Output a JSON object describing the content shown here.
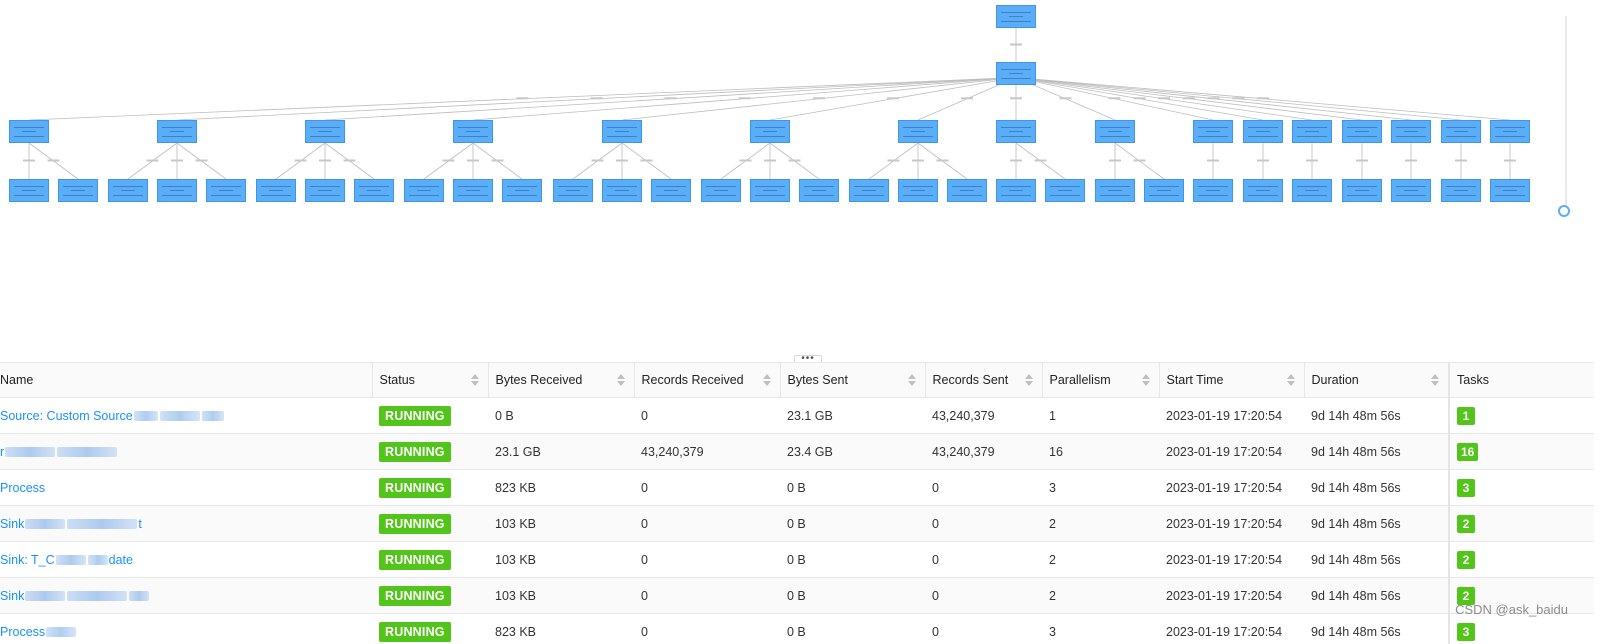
{
  "table": {
    "columns": [
      "Name",
      "Status",
      "Bytes Received",
      "Records Received",
      "Bytes Sent",
      "Records Sent",
      "Parallelism",
      "Start Time",
      "Duration",
      "Tasks"
    ],
    "rows": [
      {
        "name": "Source: Custom Source",
        "status": "RUNNING",
        "bytes_received": "0 B",
        "records_received": "0",
        "bytes_sent": "23.1 GB",
        "records_sent": "43,240,379",
        "parallelism": "1",
        "start_time": "2023-01-19 17:20:54",
        "duration": "9d 14h 48m 56s",
        "tasks": "1"
      },
      {
        "name": "r",
        "status": "RUNNING",
        "bytes_received": "23.1 GB",
        "records_received": "43,240,379",
        "bytes_sent": "23.4 GB",
        "records_sent": "43,240,379",
        "parallelism": "16",
        "start_time": "2023-01-19 17:20:54",
        "duration": "9d 14h 48m 56s",
        "tasks": "16"
      },
      {
        "name": "Process",
        "status": "RUNNING",
        "bytes_received": "823 KB",
        "records_received": "0",
        "bytes_sent": "0 B",
        "records_sent": "0",
        "parallelism": "3",
        "start_time": "2023-01-19 17:20:54",
        "duration": "9d 14h 48m 56s",
        "tasks": "3"
      },
      {
        "name": "Sink",
        "name_suffix": "t",
        "status": "RUNNING",
        "bytes_received": "103 KB",
        "records_received": "0",
        "bytes_sent": "0 B",
        "records_sent": "0",
        "parallelism": "2",
        "start_time": "2023-01-19 17:20:54",
        "duration": "9d 14h 48m 56s",
        "tasks": "2"
      },
      {
        "name": "Sink: T_C",
        "name_suffix": "date",
        "status": "RUNNING",
        "bytes_received": "103 KB",
        "records_received": "0",
        "bytes_sent": "0 B",
        "records_sent": "0",
        "parallelism": "2",
        "start_time": "2023-01-19 17:20:54",
        "duration": "9d 14h 48m 56s",
        "tasks": "2"
      },
      {
        "name": "Sink",
        "status": "RUNNING",
        "bytes_received": "103 KB",
        "records_received": "0",
        "bytes_sent": "0 B",
        "records_sent": "0",
        "parallelism": "2",
        "start_time": "2023-01-19 17:20:54",
        "duration": "9d 14h 48m 56s",
        "tasks": "2"
      },
      {
        "name": "Process",
        "status": "RUNNING",
        "bytes_received": "823 KB",
        "records_received": "0",
        "bytes_sent": "0 B",
        "records_sent": "0",
        "parallelism": "3",
        "start_time": "2023-01-19 17:20:54",
        "duration": "9d 14h 48m 56s",
        "tasks": "3"
      }
    ]
  },
  "resize_handle_glyph": "•••",
  "watermark": "CSDN @ask_baidu",
  "colors": {
    "node": "#5aaef7",
    "status": "#52c41a",
    "link": "#1890ff"
  }
}
